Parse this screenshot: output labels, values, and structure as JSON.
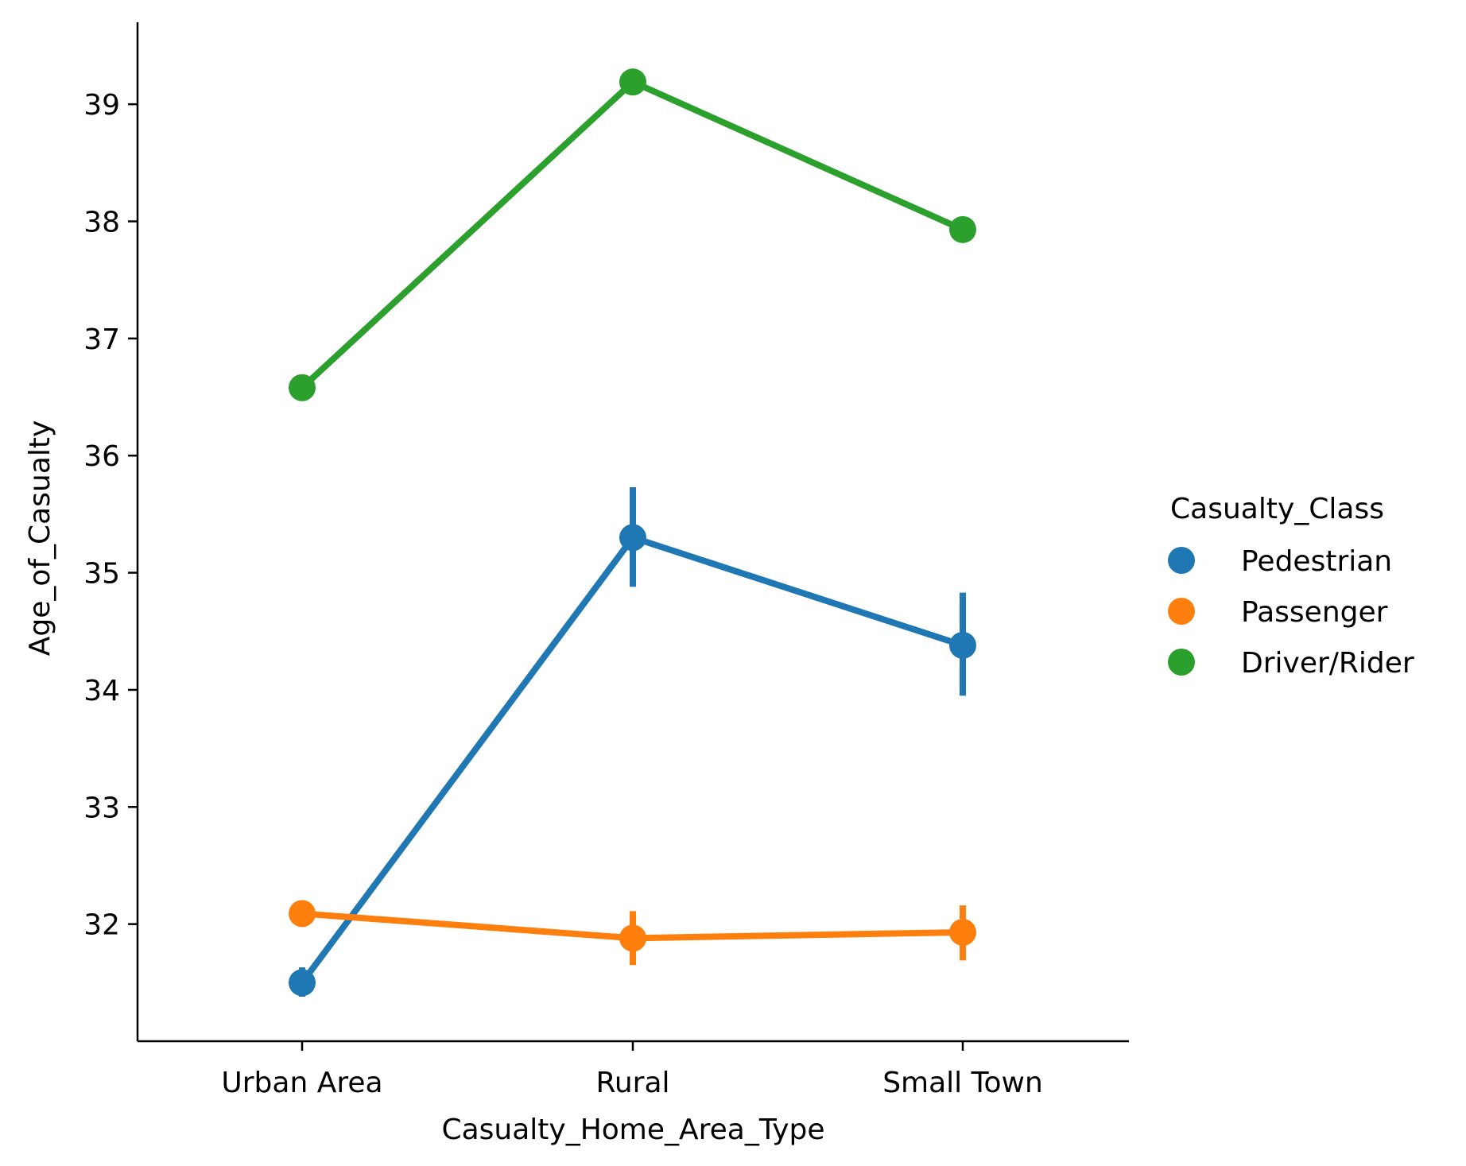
{
  "chart_data": {
    "type": "line",
    "subtype": "pointplot",
    "xlabel": "Casualty_Home_Area_Type",
    "ylabel": "Age_of_Casualty",
    "categories": [
      "Urban Area",
      "Rural",
      "Small Town"
    ],
    "ylim": [
      31.0,
      39.7
    ],
    "yticks": [
      32,
      33,
      34,
      35,
      36,
      37,
      38,
      39
    ],
    "grid": false,
    "legend": {
      "title": "Casualty_Class",
      "placement": "right"
    },
    "series": [
      {
        "name": "Pedestrian",
        "color": "#1f77b4",
        "values": [
          31.5,
          35.3,
          34.38
        ],
        "ci_low": [
          31.38,
          34.88,
          33.95
        ],
        "ci_high": [
          31.63,
          35.73,
          34.83
        ]
      },
      {
        "name": "Passenger",
        "color": "#ff7f0e",
        "values": [
          32.09,
          31.88,
          31.93
        ],
        "ci_low": [
          32.02,
          31.65,
          31.69
        ],
        "ci_high": [
          32.16,
          32.11,
          32.16
        ]
      },
      {
        "name": "Driver/Rider",
        "color": "#2ca02c",
        "values": [
          36.58,
          39.19,
          37.93
        ],
        "ci_low": [
          36.54,
          39.11,
          37.83
        ],
        "ci_high": [
          36.62,
          39.27,
          38.04
        ]
      }
    ]
  }
}
